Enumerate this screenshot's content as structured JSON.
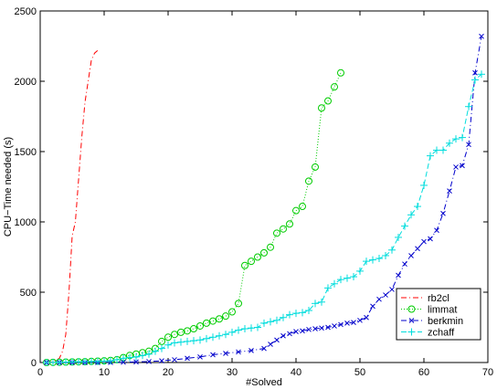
{
  "chart_data": {
    "type": "line",
    "xlabel": "#Solved",
    "ylabel": "CPU−Time needed (s)",
    "xlim": [
      0,
      70
    ],
    "ylim": [
      0,
      2500
    ],
    "xticks": [
      0,
      10,
      20,
      30,
      40,
      50,
      60,
      70
    ],
    "yticks": [
      0,
      500,
      1000,
      1500,
      2000,
      2500
    ],
    "grid": false,
    "legend_position": "bottom-right",
    "series": [
      {
        "name": "rb2cl",
        "color": "#ff0000",
        "linestyle": "dashdot",
        "marker": "none",
        "points": [
          [
            1,
            0
          ],
          [
            2,
            5
          ],
          [
            3,
            30
          ],
          [
            3.5,
            80
          ],
          [
            4,
            200
          ],
          [
            4.5,
            500
          ],
          [
            5,
            900
          ],
          [
            5.5,
            1000
          ],
          [
            6,
            1300
          ],
          [
            6.5,
            1600
          ],
          [
            7,
            1850
          ],
          [
            7.5,
            2000
          ],
          [
            8,
            2150
          ],
          [
            8.5,
            2200
          ],
          [
            9,
            2220
          ]
        ]
      },
      {
        "name": "limmat",
        "color": "#00cc00",
        "linestyle": "dotted",
        "marker": "circle",
        "points": [
          [
            1,
            0
          ],
          [
            2,
            1
          ],
          [
            3,
            2
          ],
          [
            4,
            3
          ],
          [
            5,
            4
          ],
          [
            6,
            5
          ],
          [
            7,
            6
          ],
          [
            8,
            8
          ],
          [
            9,
            10
          ],
          [
            10,
            12
          ],
          [
            11,
            15
          ],
          [
            12,
            20
          ],
          [
            13,
            35
          ],
          [
            14,
            50
          ],
          [
            15,
            60
          ],
          [
            16,
            70
          ],
          [
            17,
            80
          ],
          [
            18,
            100
          ],
          [
            19,
            150
          ],
          [
            20,
            180
          ],
          [
            21,
            200
          ],
          [
            22,
            215
          ],
          [
            23,
            225
          ],
          [
            24,
            240
          ],
          [
            25,
            260
          ],
          [
            26,
            280
          ],
          [
            27,
            295
          ],
          [
            28,
            310
          ],
          [
            29,
            330
          ],
          [
            30,
            360
          ],
          [
            31,
            420
          ],
          [
            32,
            690
          ],
          [
            33,
            720
          ],
          [
            34,
            750
          ],
          [
            35,
            780
          ],
          [
            36,
            820
          ],
          [
            37,
            920
          ],
          [
            38,
            950
          ],
          [
            39,
            985
          ],
          [
            40,
            1080
          ],
          [
            41,
            1110
          ],
          [
            42,
            1290
          ],
          [
            43,
            1390
          ],
          [
            44,
            1810
          ],
          [
            45,
            1860
          ],
          [
            46,
            1960
          ],
          [
            47,
            2060
          ]
        ]
      },
      {
        "name": "berkmin",
        "color": "#0000cc",
        "linestyle": "dashdot",
        "marker": "x",
        "points": [
          [
            1,
            0
          ],
          [
            3,
            0
          ],
          [
            5,
            0
          ],
          [
            7,
            0
          ],
          [
            9,
            0
          ],
          [
            11,
            1
          ],
          [
            13,
            2
          ],
          [
            15,
            4
          ],
          [
            17,
            7
          ],
          [
            19,
            12
          ],
          [
            21,
            20
          ],
          [
            23,
            30
          ],
          [
            25,
            40
          ],
          [
            27,
            55
          ],
          [
            29,
            65
          ],
          [
            31,
            75
          ],
          [
            33,
            85
          ],
          [
            35,
            100
          ],
          [
            36,
            130
          ],
          [
            37,
            160
          ],
          [
            38,
            190
          ],
          [
            39,
            205
          ],
          [
            40,
            220
          ],
          [
            41,
            225
          ],
          [
            42,
            235
          ],
          [
            43,
            240
          ],
          [
            44,
            245
          ],
          [
            45,
            250
          ],
          [
            46,
            260
          ],
          [
            47,
            270
          ],
          [
            48,
            280
          ],
          [
            49,
            285
          ],
          [
            50,
            300
          ],
          [
            51,
            320
          ],
          [
            52,
            400
          ],
          [
            53,
            450
          ],
          [
            54,
            480
          ],
          [
            55,
            520
          ],
          [
            56,
            620
          ],
          [
            57,
            700
          ],
          [
            58,
            760
          ],
          [
            59,
            810
          ],
          [
            60,
            860
          ],
          [
            61,
            880
          ],
          [
            62,
            940
          ],
          [
            63,
            1060
          ],
          [
            64,
            1220
          ],
          [
            65,
            1390
          ],
          [
            66,
            1400
          ],
          [
            67,
            1550
          ],
          [
            68,
            2060
          ],
          [
            69,
            2320
          ]
        ]
      },
      {
        "name": "zchaff",
        "color": "#00dddd",
        "linestyle": "dashed",
        "marker": "plus",
        "points": [
          [
            1,
            0
          ],
          [
            2,
            1
          ],
          [
            3,
            2
          ],
          [
            4,
            3
          ],
          [
            5,
            4
          ],
          [
            6,
            5
          ],
          [
            7,
            6
          ],
          [
            8,
            7
          ],
          [
            9,
            8
          ],
          [
            10,
            10
          ],
          [
            11,
            12
          ],
          [
            12,
            20
          ],
          [
            13,
            30
          ],
          [
            14,
            35
          ],
          [
            15,
            40
          ],
          [
            16,
            50
          ],
          [
            17,
            60
          ],
          [
            18,
            80
          ],
          [
            19,
            100
          ],
          [
            20,
            125
          ],
          [
            21,
            140
          ],
          [
            22,
            145
          ],
          [
            23,
            150
          ],
          [
            24,
            155
          ],
          [
            25,
            160
          ],
          [
            26,
            170
          ],
          [
            27,
            180
          ],
          [
            28,
            190
          ],
          [
            29,
            200
          ],
          [
            30,
            215
          ],
          [
            31,
            230
          ],
          [
            32,
            240
          ],
          [
            33,
            245
          ],
          [
            34,
            250
          ],
          [
            35,
            280
          ],
          [
            36,
            290
          ],
          [
            37,
            300
          ],
          [
            38,
            320
          ],
          [
            39,
            340
          ],
          [
            40,
            350
          ],
          [
            41,
            355
          ],
          [
            42,
            370
          ],
          [
            43,
            420
          ],
          [
            44,
            430
          ],
          [
            45,
            530
          ],
          [
            46,
            560
          ],
          [
            47,
            590
          ],
          [
            48,
            600
          ],
          [
            49,
            610
          ],
          [
            50,
            650
          ],
          [
            51,
            720
          ],
          [
            52,
            730
          ],
          [
            53,
            740
          ],
          [
            54,
            760
          ],
          [
            55,
            800
          ],
          [
            56,
            890
          ],
          [
            57,
            970
          ],
          [
            58,
            1050
          ],
          [
            59,
            1110
          ],
          [
            60,
            1260
          ],
          [
            61,
            1470
          ],
          [
            62,
            1510
          ],
          [
            63,
            1510
          ],
          [
            64,
            1560
          ],
          [
            65,
            1590
          ],
          [
            66,
            1600
          ],
          [
            67,
            1820
          ],
          [
            68,
            2010
          ],
          [
            69,
            2050
          ]
        ]
      }
    ]
  }
}
